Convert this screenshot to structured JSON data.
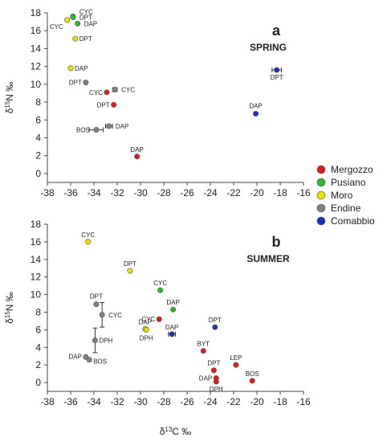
{
  "figure": {
    "x_axis_label": "δ13C ‰",
    "y_axis_label": "δ15N ‰"
  },
  "legend": [
    {
      "name": "Mergozzo",
      "color": "#d42020"
    },
    {
      "name": "Pusiano",
      "color": "#2db82d"
    },
    {
      "name": "Moro",
      "color": "#e8e000"
    },
    {
      "name": "Endine",
      "color": "#808080"
    },
    {
      "name": "Comabbio",
      "color": "#1d2fbf"
    }
  ],
  "chart_data": [
    {
      "type": "scatter",
      "letter": "a",
      "title": "SPRING",
      "xlim": [
        -38,
        -16
      ],
      "ylim": [
        -1,
        18
      ],
      "xticks": [
        -38,
        -36,
        -34,
        -32,
        -30,
        -28,
        -26,
        -24,
        -22,
        -20,
        -18,
        -16
      ],
      "yticks": [
        0,
        2,
        4,
        6,
        8,
        10,
        12,
        14,
        16,
        18
      ],
      "xlabel": "",
      "ylabel": "δ15N ‰",
      "points": [
        {
          "label": "CYC",
          "lake": "Pusiano",
          "x": -35.8,
          "y": 17.6,
          "xerr": 0,
          "yerr": 0
        },
        {
          "label": "DPT",
          "lake": "Pusiano",
          "x": -35.8,
          "y": 17.5,
          "xerr": 0,
          "yerr": 0
        },
        {
          "label": "CYC",
          "lake": "Moro",
          "x": -36.3,
          "y": 17.2,
          "xerr": 0,
          "yerr": 0
        },
        {
          "label": "DAP",
          "lake": "Pusiano",
          "x": -35.4,
          "y": 16.8,
          "xerr": 0,
          "yerr": 0
        },
        {
          "label": "DPT",
          "lake": "Moro",
          "x": -35.6,
          "y": 15.1,
          "xerr": 0,
          "yerr": 0
        },
        {
          "label": "DAP",
          "lake": "Moro",
          "x": -36.0,
          "y": 11.8,
          "xerr": 0,
          "yerr": 0
        },
        {
          "label": "DPT",
          "lake": "Endine",
          "x": -34.7,
          "y": 10.2,
          "xerr": 0,
          "yerr": 0
        },
        {
          "label": "CYC",
          "lake": "Endine",
          "x": -32.2,
          "y": 9.4,
          "xerr": 0.2,
          "yerr": 0
        },
        {
          "label": "CYC",
          "lake": "Mergozzo",
          "x": -32.9,
          "y": 9.1,
          "xerr": 0,
          "yerr": 0
        },
        {
          "label": "DPT",
          "lake": "Mergozzo",
          "x": -32.3,
          "y": 7.7,
          "xerr": 0,
          "yerr": 0
        },
        {
          "label": "DAP",
          "lake": "Endine",
          "x": -32.7,
          "y": 5.3,
          "xerr": 0.3,
          "yerr": 0
        },
        {
          "label": "BOS",
          "lake": "Endine",
          "x": -33.8,
          "y": 4.9,
          "xerr": 0.6,
          "yerr": 0
        },
        {
          "label": "DAP",
          "lake": "Mergozzo",
          "x": -30.3,
          "y": 1.9,
          "xerr": 0,
          "yerr": 0
        },
        {
          "label": "DPT",
          "lake": "Comabbio",
          "x": -18.3,
          "y": 11.6,
          "xerr": 0.4,
          "yerr": 0
        },
        {
          "label": "DAP",
          "lake": "Comabbio",
          "x": -20.1,
          "y": 6.7,
          "xerr": 0,
          "yerr": 0
        }
      ]
    },
    {
      "type": "scatter",
      "letter": "b",
      "title": "SUMMER",
      "xlim": [
        -38,
        -16
      ],
      "ylim": [
        -1,
        18
      ],
      "xticks": [
        -38,
        -36,
        -34,
        -32,
        -30,
        -28,
        -26,
        -24,
        -22,
        -20,
        -18,
        -16
      ],
      "yticks": [
        0,
        2,
        4,
        6,
        8,
        10,
        12,
        14,
        16,
        18
      ],
      "xlabel": "δ13C ‰",
      "ylabel": "δ15N ‰",
      "points": [
        {
          "label": "CYC",
          "lake": "Moro",
          "x": -34.5,
          "y": 16.0,
          "xerr": 0,
          "yerr": 0
        },
        {
          "label": "DPT",
          "lake": "Moro",
          "x": -30.9,
          "y": 12.7,
          "xerr": 0,
          "yerr": 0
        },
        {
          "label": "CYC",
          "lake": "Pusiano",
          "x": -28.3,
          "y": 10.5,
          "xerr": 0,
          "yerr": 0
        },
        {
          "label": "DPT",
          "lake": "Endine",
          "x": -33.8,
          "y": 8.9,
          "xerr": 0,
          "yerr": 0
        },
        {
          "label": "DAP",
          "lake": "Pusiano",
          "x": -27.2,
          "y": 8.3,
          "xerr": 0,
          "yerr": 0
        },
        {
          "label": "CYC",
          "lake": "Endine",
          "x": -33.3,
          "y": 7.7,
          "xerr": 0,
          "yerr": 1.4
        },
        {
          "label": "CYC",
          "lake": "Mergozzo",
          "x": -28.4,
          "y": 7.2,
          "xerr": 0,
          "yerr": 0
        },
        {
          "label": "DPT",
          "lake": "Comabbio",
          "x": -23.6,
          "y": 6.3,
          "xerr": 0,
          "yerr": 0
        },
        {
          "label": "DAP",
          "lake": "Moro",
          "x": -29.6,
          "y": 6.1,
          "xerr": 0,
          "yerr": 0
        },
        {
          "label": "DPH",
          "lake": "Moro",
          "x": -29.5,
          "y": 6.0,
          "xerr": 0,
          "yerr": 0
        },
        {
          "label": "DAP",
          "lake": "Comabbio",
          "x": -27.3,
          "y": 5.5,
          "xerr": 0.3,
          "yerr": 0
        },
        {
          "label": "DPH",
          "lake": "Endine",
          "x": -33.9,
          "y": 4.8,
          "xerr": 0,
          "yerr": 1.4
        },
        {
          "label": "BYT",
          "lake": "Mergozzo",
          "x": -24.6,
          "y": 3.6,
          "xerr": 0,
          "yerr": 0
        },
        {
          "label": "DAP",
          "lake": "Endine",
          "x": -34.7,
          "y": 2.9,
          "xerr": 0,
          "yerr": 0
        },
        {
          "label": "BOS",
          "lake": "Endine",
          "x": -34.4,
          "y": 2.6,
          "xerr": 0,
          "yerr": 0
        },
        {
          "label": "LEP",
          "lake": "Mergozzo",
          "x": -21.8,
          "y": 2.0,
          "xerr": 0,
          "yerr": 0
        },
        {
          "label": "DPT",
          "lake": "Mergozzo",
          "x": -23.7,
          "y": 1.4,
          "xerr": 0,
          "yerr": 0
        },
        {
          "label": "DAP",
          "lake": "Mergozzo",
          "x": -23.5,
          "y": 0.5,
          "xerr": 0,
          "yerr": 0
        },
        {
          "label": "DPH",
          "lake": "Mergozzo",
          "x": -23.5,
          "y": 0.1,
          "xerr": 0,
          "yerr": 0
        },
        {
          "label": "BOS",
          "lake": "Mergozzo",
          "x": -20.4,
          "y": 0.2,
          "xerr": 0,
          "yerr": 0
        }
      ]
    }
  ]
}
